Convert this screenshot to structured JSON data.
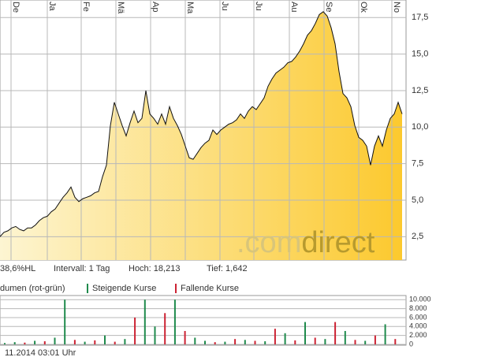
{
  "chart_data": [
    {
      "type": "area",
      "values": [
        2.5,
        2.8,
        2.9,
        3.1,
        3.2,
        3.0,
        2.9,
        3.1,
        3.1,
        3.3,
        3.6,
        3.8,
        3.9,
        4.2,
        4.4,
        4.8,
        5.2,
        5.5,
        5.9,
        5.2,
        4.9,
        5.1,
        5.2,
        5.3,
        5.5,
        5.6,
        6.6,
        7.4,
        10.1,
        11.7,
        10.9,
        10.1,
        9.4,
        10.3,
        11.1,
        10.3,
        10.6,
        12.5,
        10.9,
        10.6,
        10.2,
        10.9,
        10.2,
        11.4,
        10.6,
        10.1,
        9.5,
        8.7,
        7.9,
        7.8,
        8.2,
        8.6,
        8.9,
        9.1,
        9.8,
        9.5,
        9.8,
        10.0,
        10.2,
        10.3,
        10.5,
        10.9,
        10.6,
        11.1,
        11.4,
        11.2,
        11.6,
        12.0,
        12.8,
        13.3,
        13.7,
        13.9,
        14.1,
        14.4,
        14.5,
        14.8,
        15.2,
        15.7,
        16.3,
        16.6,
        17.1,
        17.7,
        17.9,
        17.6,
        16.8,
        15.7,
        13.8,
        12.3,
        12.0,
        11.4,
        10.1,
        9.3,
        9.1,
        8.7,
        7.4,
        8.7,
        9.4,
        8.7,
        9.8,
        10.6,
        10.9,
        11.7,
        10.9
      ],
      "xlim": [
        0,
        102
      ],
      "xticks": [
        {
          "value": 2.8,
          "label": "De"
        },
        {
          "value": 12,
          "label": "Ja"
        },
        {
          "value": 20.6,
          "label": "Fe"
        },
        {
          "value": 29.4,
          "label": "Mä"
        },
        {
          "value": 38.2,
          "label": "Ap"
        },
        {
          "value": 47,
          "label": "Ma"
        },
        {
          "value": 55.8,
          "label": "Ju"
        },
        {
          "value": 64.4,
          "label": "Ju"
        },
        {
          "value": 73.4,
          "label": "Au"
        },
        {
          "value": 82.2,
          "label": "Se"
        },
        {
          "value": 91,
          "label": "Ok"
        },
        {
          "value": 99.4,
          "label": "No"
        }
      ],
      "ylim": [
        0.9,
        18.7
      ],
      "yticks": [
        {
          "value": 2.5,
          "label": "2,5"
        },
        {
          "value": 5,
          "label": "5,0"
        },
        {
          "value": 7.5,
          "label": "7,5"
        },
        {
          "value": 10,
          "label": "10,0"
        },
        {
          "value": 12.5,
          "label": "12,5"
        },
        {
          "value": 15,
          "label": "15,0"
        },
        {
          "value": 17.5,
          "label": "17,5"
        }
      ],
      "grid": true,
      "info": [
        "38,6%HL",
        "Intervall: 1 Tag",
        "Hoch: 18,213",
        "Tief: 1,642"
      ],
      "watermark": [
        ".com",
        "direct"
      ]
    },
    {
      "type": "bar",
      "title": "dumen (rot-grün)",
      "series": [
        {
          "name": "Steigende Kurse",
          "color": "#1f8a4c",
          "values": [
            300,
            500,
            null,
            800,
            null,
            1500,
            10000,
            null,
            600,
            null,
            2000,
            null,
            1200,
            null,
            10000,
            4000,
            null,
            10000,
            null,
            1500,
            800,
            null,
            600,
            null,
            1000,
            null,
            700,
            null,
            2500,
            null,
            5000,
            null,
            1200,
            null,
            3000,
            null,
            800,
            null,
            4500,
            null
          ]
        },
        {
          "name": "Fallende Kurse",
          "color": "#cc2233",
          "values": [
            null,
            null,
            400,
            null,
            700,
            null,
            null,
            1000,
            null,
            900,
            null,
            600,
            null,
            6000,
            null,
            null,
            7000,
            null,
            3000,
            null,
            null,
            500,
            null,
            1200,
            null,
            800,
            null,
            3500,
            null,
            900,
            null,
            1500,
            null,
            5000,
            null,
            1000,
            null,
            2000,
            null,
            1200
          ]
        }
      ],
      "ylim": [
        0,
        10400
      ],
      "yticks": [
        0,
        {
          "value": 2000,
          "label": "2.000"
        },
        {
          "value": 4000,
          "label": "4.000"
        },
        {
          "value": 6000,
          "label": "6.000"
        },
        {
          "value": 8000,
          "label": "8.000"
        },
        {
          "value": 10000,
          "label": "10.000"
        }
      ],
      "footer": "11.2014 03:01 Uhr"
    }
  ]
}
